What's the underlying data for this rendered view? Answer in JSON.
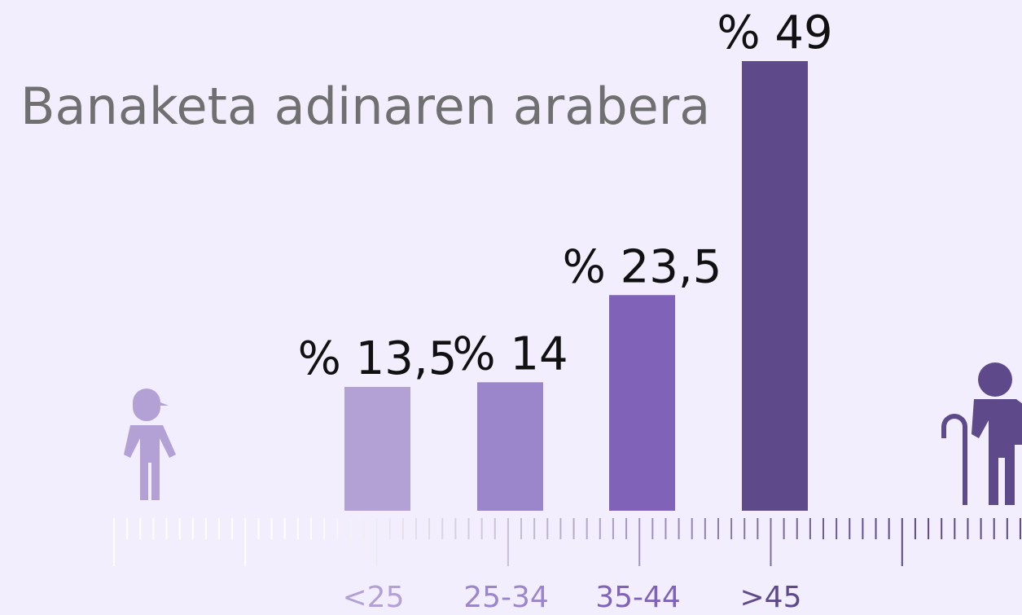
{
  "chart_data": {
    "type": "bar",
    "title": "Banaketa adinaren arabera",
    "categories": [
      "<25",
      "25-34",
      "35-44",
      ">45"
    ],
    "values": [
      13.5,
      14,
      23.5,
      49
    ],
    "value_labels": [
      "% 13,5",
      "% 14",
      "% 23,5",
      "% 49"
    ],
    "colors": [
      "#b3a1d6",
      "#9b86cb",
      "#8063b8",
      "#5e4a8b"
    ]
  }
}
